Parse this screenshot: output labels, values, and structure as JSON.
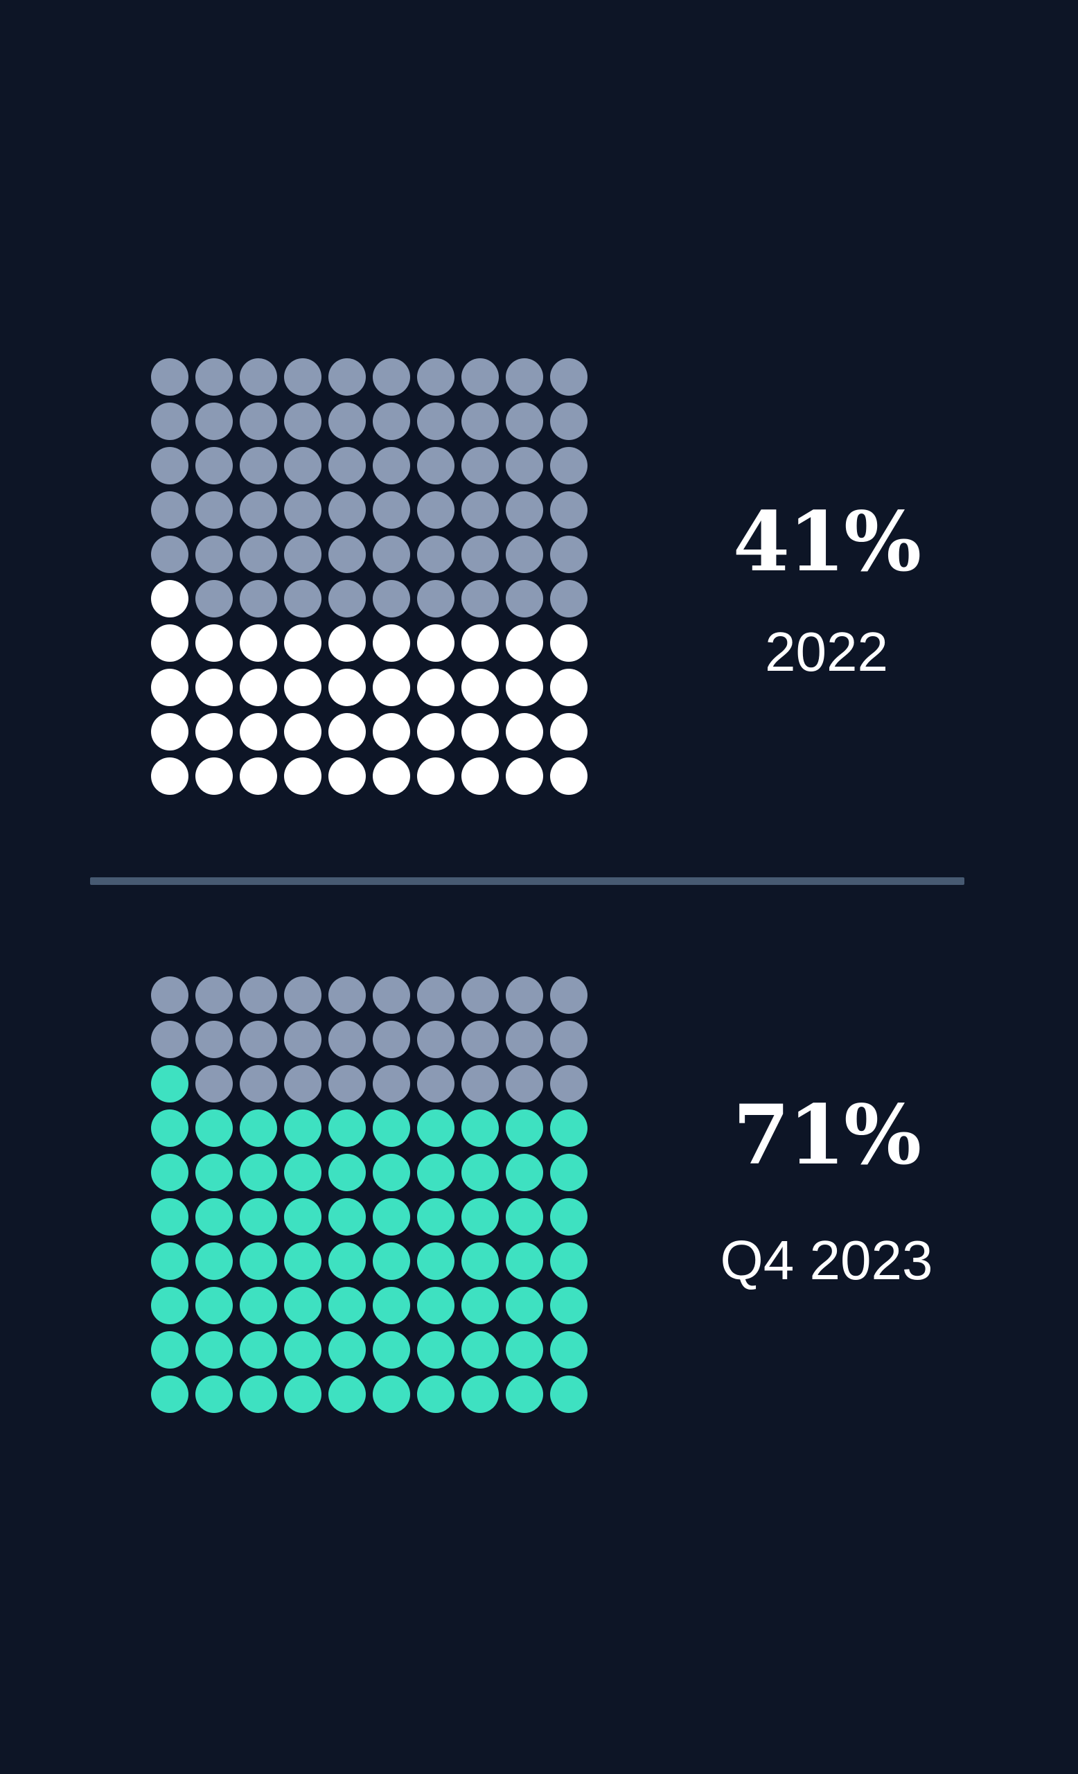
{
  "page": {
    "background": "#0d1526",
    "text_color": "#ffffff"
  },
  "divider": {
    "color": "#475a72"
  },
  "chart_data": [
    {
      "type": "waffle",
      "title": "41%",
      "subtitle": "2022",
      "categories": [
        "2022"
      ],
      "values": [
        41
      ],
      "unit": "%",
      "grid_rows": 10,
      "grid_cols": 10,
      "filled_dots": 41,
      "total_dots": 100,
      "fill_order": "bottom-left upward, left-to-right in partial row",
      "fill_color": "#ffffff",
      "empty_color": "#8b9ab4",
      "legend_position": "right"
    },
    {
      "type": "waffle",
      "title": "71%",
      "subtitle": "Q4 2023",
      "categories": [
        "Q4 2023"
      ],
      "values": [
        71
      ],
      "unit": "%",
      "grid_rows": 10,
      "grid_cols": 10,
      "filled_dots": 71,
      "total_dots": 100,
      "fill_order": "bottom-left upward, left-to-right in partial row",
      "fill_color": "#3ee1c1",
      "empty_color": "#8b9ab4",
      "legend_position": "right"
    }
  ]
}
